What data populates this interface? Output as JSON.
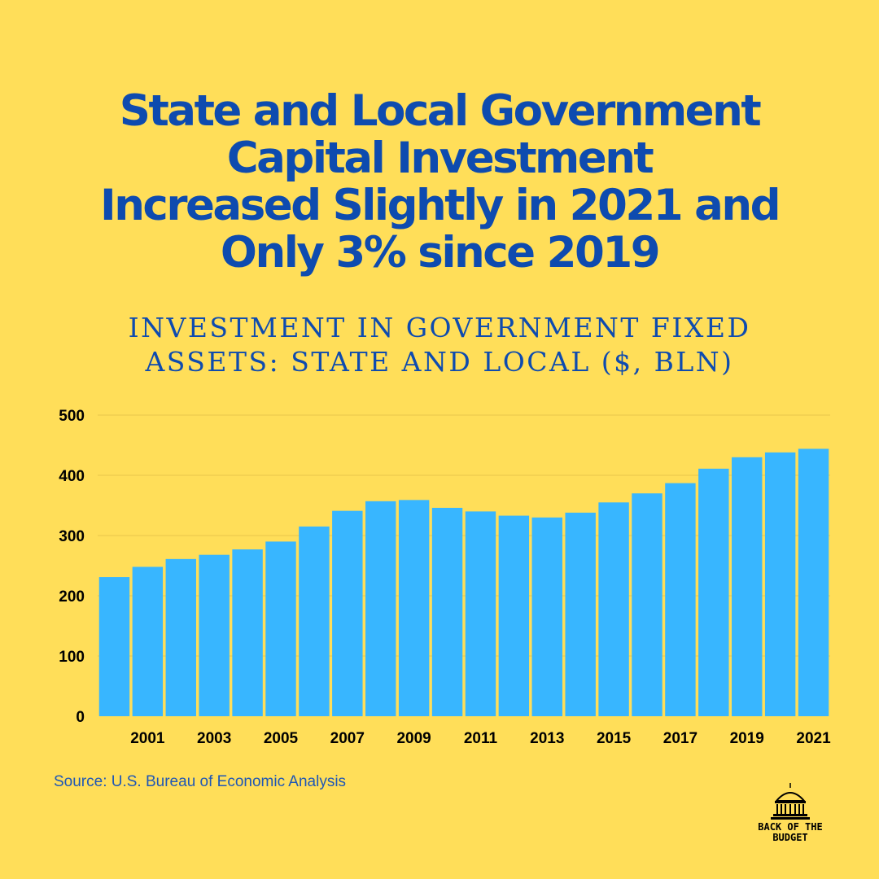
{
  "title": {
    "line1": "State and Local Government",
    "line2": "Capital Investment",
    "line3": "Increased Slightly in 2021 and",
    "line4": "Only 3% since 2019"
  },
  "subtitle": {
    "line1": "INVESTMENT IN GOVERNMENT FIXED",
    "line2": "ASSETS: STATE AND LOCAL ($, BLN)"
  },
  "source": "Source: U.S. Bureau of Economic Analysis",
  "logo": {
    "line1": "BACK OF THE",
    "line2": "BUDGET",
    "icon": "capitol-dome-icon"
  },
  "colors": {
    "background": "#FFDE59",
    "bar": "#38B6FF",
    "title": "#0E4BAF",
    "gridline": "#E8C64A"
  },
  "chart_data": {
    "type": "bar",
    "title": "INVESTMENT IN GOVERNMENT FIXED ASSETS: STATE AND LOCAL ($, BLN)",
    "xlabel": "",
    "ylabel": "",
    "categories": [
      "2000",
      "2001",
      "2002",
      "2003",
      "2004",
      "2005",
      "2006",
      "2007",
      "2008",
      "2009",
      "2010",
      "2011",
      "2012",
      "2013",
      "2014",
      "2015",
      "2016",
      "2017",
      "2018",
      "2019",
      "2020",
      "2021"
    ],
    "x_tick_labels": [
      "2001",
      "2003",
      "2005",
      "2007",
      "2009",
      "2011",
      "2013",
      "2015",
      "2017",
      "2019",
      "2021"
    ],
    "values": [
      231,
      248,
      261,
      268,
      277,
      290,
      315,
      341,
      357,
      359,
      346,
      340,
      333,
      330,
      338,
      355,
      370,
      387,
      411,
      430,
      438,
      444
    ],
    "ylim": [
      0,
      500
    ],
    "y_ticks": [
      0,
      100,
      200,
      300,
      400,
      500
    ],
    "grid": true,
    "legend": "none"
  }
}
